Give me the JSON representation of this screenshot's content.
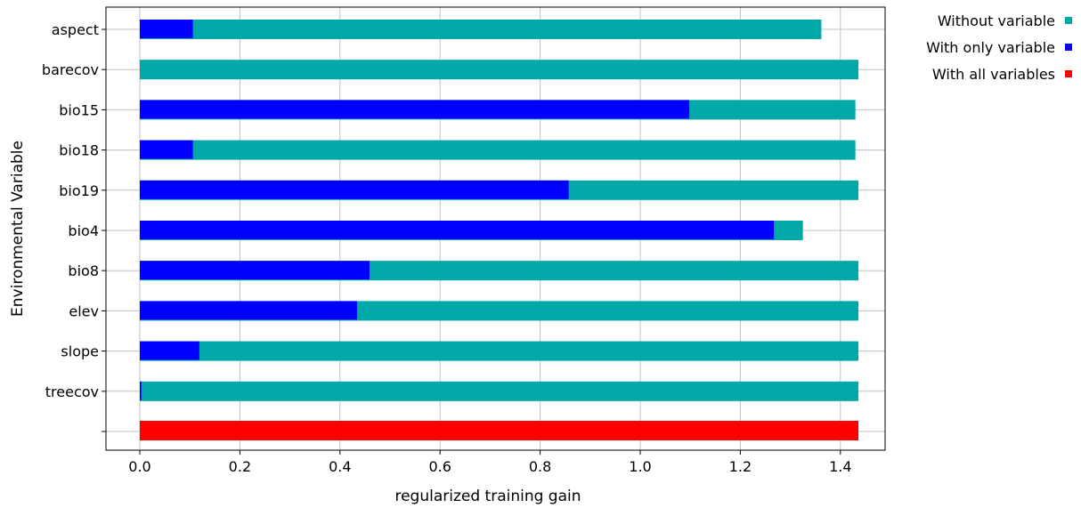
{
  "chart_data": {
    "type": "bar",
    "orientation": "horizontal",
    "categories": [
      "aspect",
      "barecov",
      "bio15",
      "bio18",
      "bio19",
      "bio4",
      "bio8",
      "elev",
      "slope",
      "treecov"
    ],
    "series": [
      {
        "name": "Without variable",
        "color": "#00a8a8",
        "values": [
          1.362,
          1.436,
          1.43,
          1.43,
          1.436,
          1.325,
          1.436,
          1.436,
          1.436,
          1.436
        ]
      },
      {
        "name": "With only variable",
        "color": "#0000ff",
        "values": [
          0.106,
          0.0,
          1.098,
          0.106,
          0.857,
          1.267,
          0.459,
          0.434,
          0.119,
          0.003
        ]
      }
    ],
    "all_variables": {
      "name": "With all variables",
      "color": "#ff0000",
      "value": 1.436
    },
    "xlabel": "regularized training gain",
    "ylabel": "Environmental Variable",
    "xlim": [
      -0.07,
      1.5
    ],
    "xticks": [
      "0.0",
      "0.2",
      "0.4",
      "0.6",
      "0.8",
      "1.0",
      "1.2",
      "1.4"
    ],
    "grid": true,
    "legend_position": "top-right"
  }
}
